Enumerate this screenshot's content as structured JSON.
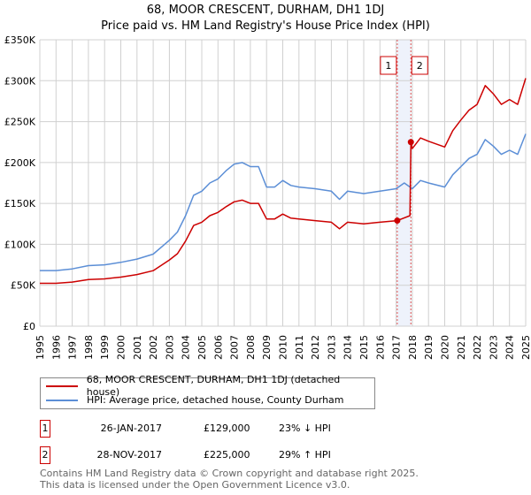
{
  "chart_data": {
    "type": "line",
    "title": "68, MOOR CRESCENT, DURHAM, DH1 1DJ",
    "subtitle": "Price paid vs. HM Land Registry's House Price Index (HPI)",
    "xlim": [
      1995,
      2025
    ],
    "ylim": [
      0,
      350000
    ],
    "grid": true,
    "x_ticks": [
      "1995",
      "1996",
      "1997",
      "1998",
      "1999",
      "2000",
      "2001",
      "2002",
      "2003",
      "2004",
      "2005",
      "2006",
      "2007",
      "2008",
      "2009",
      "2010",
      "2011",
      "2012",
      "2013",
      "2014",
      "2015",
      "2016",
      "2017",
      "2018",
      "2019",
      "2020",
      "2021",
      "2022",
      "2023",
      "2024",
      "2025"
    ],
    "y_ticks": [
      {
        "value": 0,
        "label": "£0"
      },
      {
        "value": 50000,
        "label": "£50K"
      },
      {
        "value": 100000,
        "label": "£100K"
      },
      {
        "value": 150000,
        "label": "£150K"
      },
      {
        "value": 200000,
        "label": "£200K"
      },
      {
        "value": 250000,
        "label": "£250K"
      },
      {
        "value": 300000,
        "label": "£300K"
      },
      {
        "value": 350000,
        "label": "£350K"
      }
    ],
    "series": [
      {
        "name": "68, MOOR CRESCENT, DURHAM, DH1 1DJ (detached house)",
        "color": "#cc0000",
        "x": [
          1995,
          1996,
          1997,
          1998,
          1999,
          2000,
          2001,
          2002,
          2003,
          2003.5,
          2004,
          2004.5,
          2005,
          2005.5,
          2006,
          2006.5,
          2007,
          2007.5,
          2008,
          2008.5,
          2009,
          2009.5,
          2010,
          2010.5,
          2011,
          2012,
          2013,
          2013.5,
          2014,
          2015,
          2016,
          2017.07,
          2017.85,
          2017.91,
          2018,
          2018.5,
          2019,
          2020,
          2020.5,
          2021,
          2021.5,
          2022,
          2022.5,
          2023,
          2023.5,
          2024,
          2024.5,
          2025
        ],
        "y": [
          52400,
          52400,
          53900,
          57000,
          57800,
          60000,
          63100,
          67800,
          80900,
          88600,
          104000,
          123000,
          127000,
          135000,
          139000,
          146000,
          152000,
          154000,
          150000,
          150000,
          131000,
          131000,
          137000,
          132000,
          131000,
          129000,
          127000,
          119000,
          127000,
          125000,
          127000,
          129000,
          135000,
          225000,
          217000,
          230000,
          226000,
          219000,
          239000,
          252000,
          264000,
          271000,
          294000,
          284000,
          271000,
          277000,
          271000,
          303000
        ]
      },
      {
        "name": "HPI: Average price, detached house, County Durham",
        "color": "#5b8ed6",
        "x": [
          1995,
          1996,
          1997,
          1998,
          1999,
          2000,
          2001,
          2002,
          2003,
          2003.5,
          2004,
          2004.5,
          2005,
          2005.5,
          2006,
          2006.5,
          2007,
          2007.5,
          2008,
          2008.5,
          2009,
          2009.5,
          2010,
          2010.5,
          2011,
          2012,
          2013,
          2013.5,
          2014,
          2015,
          2016,
          2017,
          2017.5,
          2018,
          2018.5,
          2019,
          2020,
          2020.5,
          2021,
          2021.5,
          2022,
          2022.5,
          2023,
          2023.5,
          2024,
          2024.5,
          2025
        ],
        "y": [
          68000,
          68000,
          70000,
          74000,
          75000,
          78000,
          82000,
          88000,
          105000,
          115000,
          135000,
          160000,
          165000,
          175000,
          180000,
          190000,
          198000,
          200000,
          195000,
          195000,
          170000,
          170000,
          178000,
          172000,
          170000,
          168000,
          165000,
          155000,
          165000,
          162000,
          165000,
          168000,
          175000,
          168000,
          178000,
          175000,
          170000,
          185000,
          195000,
          205000,
          210000,
          228000,
          220000,
          210000,
          215000,
          210000,
          235000
        ]
      }
    ],
    "sales": [
      {
        "id": "1",
        "x": 2017.07,
        "y": 129000,
        "date": "26-JAN-2017",
        "price": "£129,000",
        "hpi": "23% ↓ HPI"
      },
      {
        "id": "2",
        "x": 2017.91,
        "y": 225000,
        "date": "28-NOV-2017",
        "price": "£225,000",
        "hpi": "29% ↑ HPI"
      }
    ],
    "legend_placement": "below"
  },
  "footer": {
    "line1": "Contains HM Land Registry data © Crown copyright and database right 2025.",
    "line2": "This data is licensed under the Open Government Licence v3.0."
  }
}
